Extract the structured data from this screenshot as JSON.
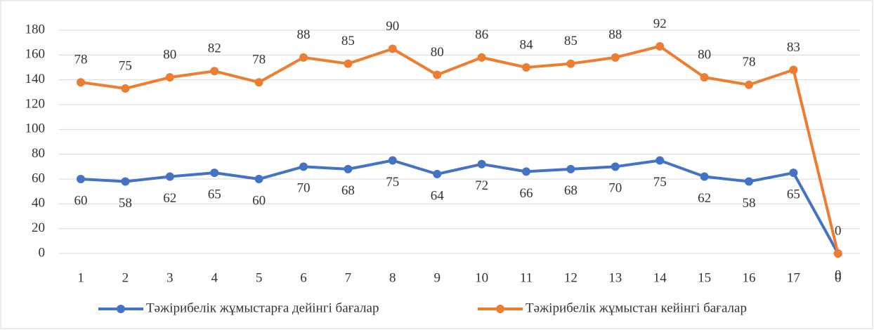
{
  "chart_data": {
    "type": "stacked-line",
    "categories": [
      "1",
      "2",
      "3",
      "4",
      "5",
      "6",
      "7",
      "8",
      "9",
      "10",
      "11",
      "12",
      "13",
      "14",
      "15",
      "16",
      "17",
      "0"
    ],
    "series": [
      {
        "name": "Тәжірибелік жұмыстарға дейінгі бағалар",
        "color": "#4472c4",
        "values": [
          60,
          58,
          62,
          65,
          60,
          70,
          68,
          75,
          64,
          72,
          66,
          68,
          70,
          75,
          62,
          58,
          65,
          0
        ]
      },
      {
        "name": "Тәжірибелік жұмыстан кейінгі бағалар",
        "color": "#ed7d31",
        "values": [
          78,
          75,
          80,
          82,
          78,
          88,
          85,
          90,
          80,
          86,
          84,
          85,
          88,
          92,
          80,
          78,
          83,
          0
        ]
      }
    ],
    "ylim": [
      0,
      180
    ],
    "yticks": [
      0,
      20,
      40,
      60,
      80,
      100,
      120,
      140,
      160,
      180
    ],
    "grid": true,
    "legend": "bottom"
  }
}
